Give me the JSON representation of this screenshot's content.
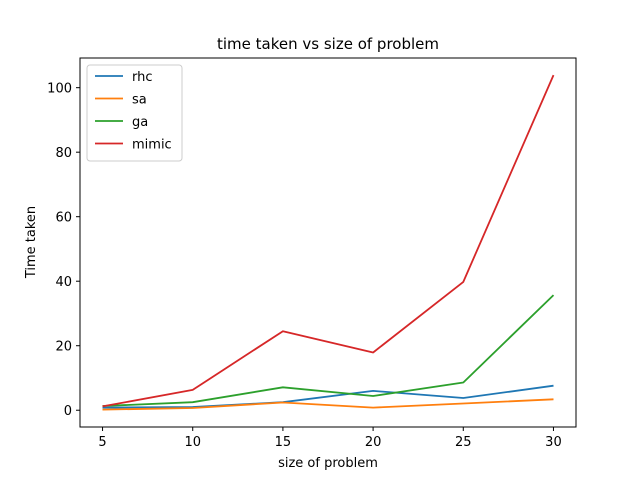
{
  "chart_data": {
    "type": "line",
    "title": "time taken vs size of problem",
    "xlabel": "size of problem",
    "ylabel": "Time taken",
    "x": [
      5,
      10,
      15,
      20,
      25,
      30
    ],
    "xticks": [
      5,
      10,
      15,
      20,
      25,
      30
    ],
    "yticks": [
      0,
      20,
      40,
      60,
      80,
      100
    ],
    "xlim": [
      3.75,
      31.25
    ],
    "ylim": [
      -5.2,
      109.2
    ],
    "grid": false,
    "legend_position": "top-left",
    "series": [
      {
        "name": "rhc",
        "color": "#1f77b4",
        "values": [
          0.8,
          1.0,
          2.5,
          6.0,
          3.8,
          7.6
        ]
      },
      {
        "name": "sa",
        "color": "#ff7f0e",
        "values": [
          0.2,
          0.7,
          2.4,
          0.8,
          2.1,
          3.4
        ]
      },
      {
        "name": "ga",
        "color": "#2ca02c",
        "values": [
          1.3,
          2.5,
          7.1,
          4.4,
          8.6,
          35.7
        ]
      },
      {
        "name": "mimic",
        "color": "#d62728",
        "values": [
          1.2,
          6.3,
          24.5,
          17.9,
          39.8,
          103.9
        ]
      }
    ]
  }
}
